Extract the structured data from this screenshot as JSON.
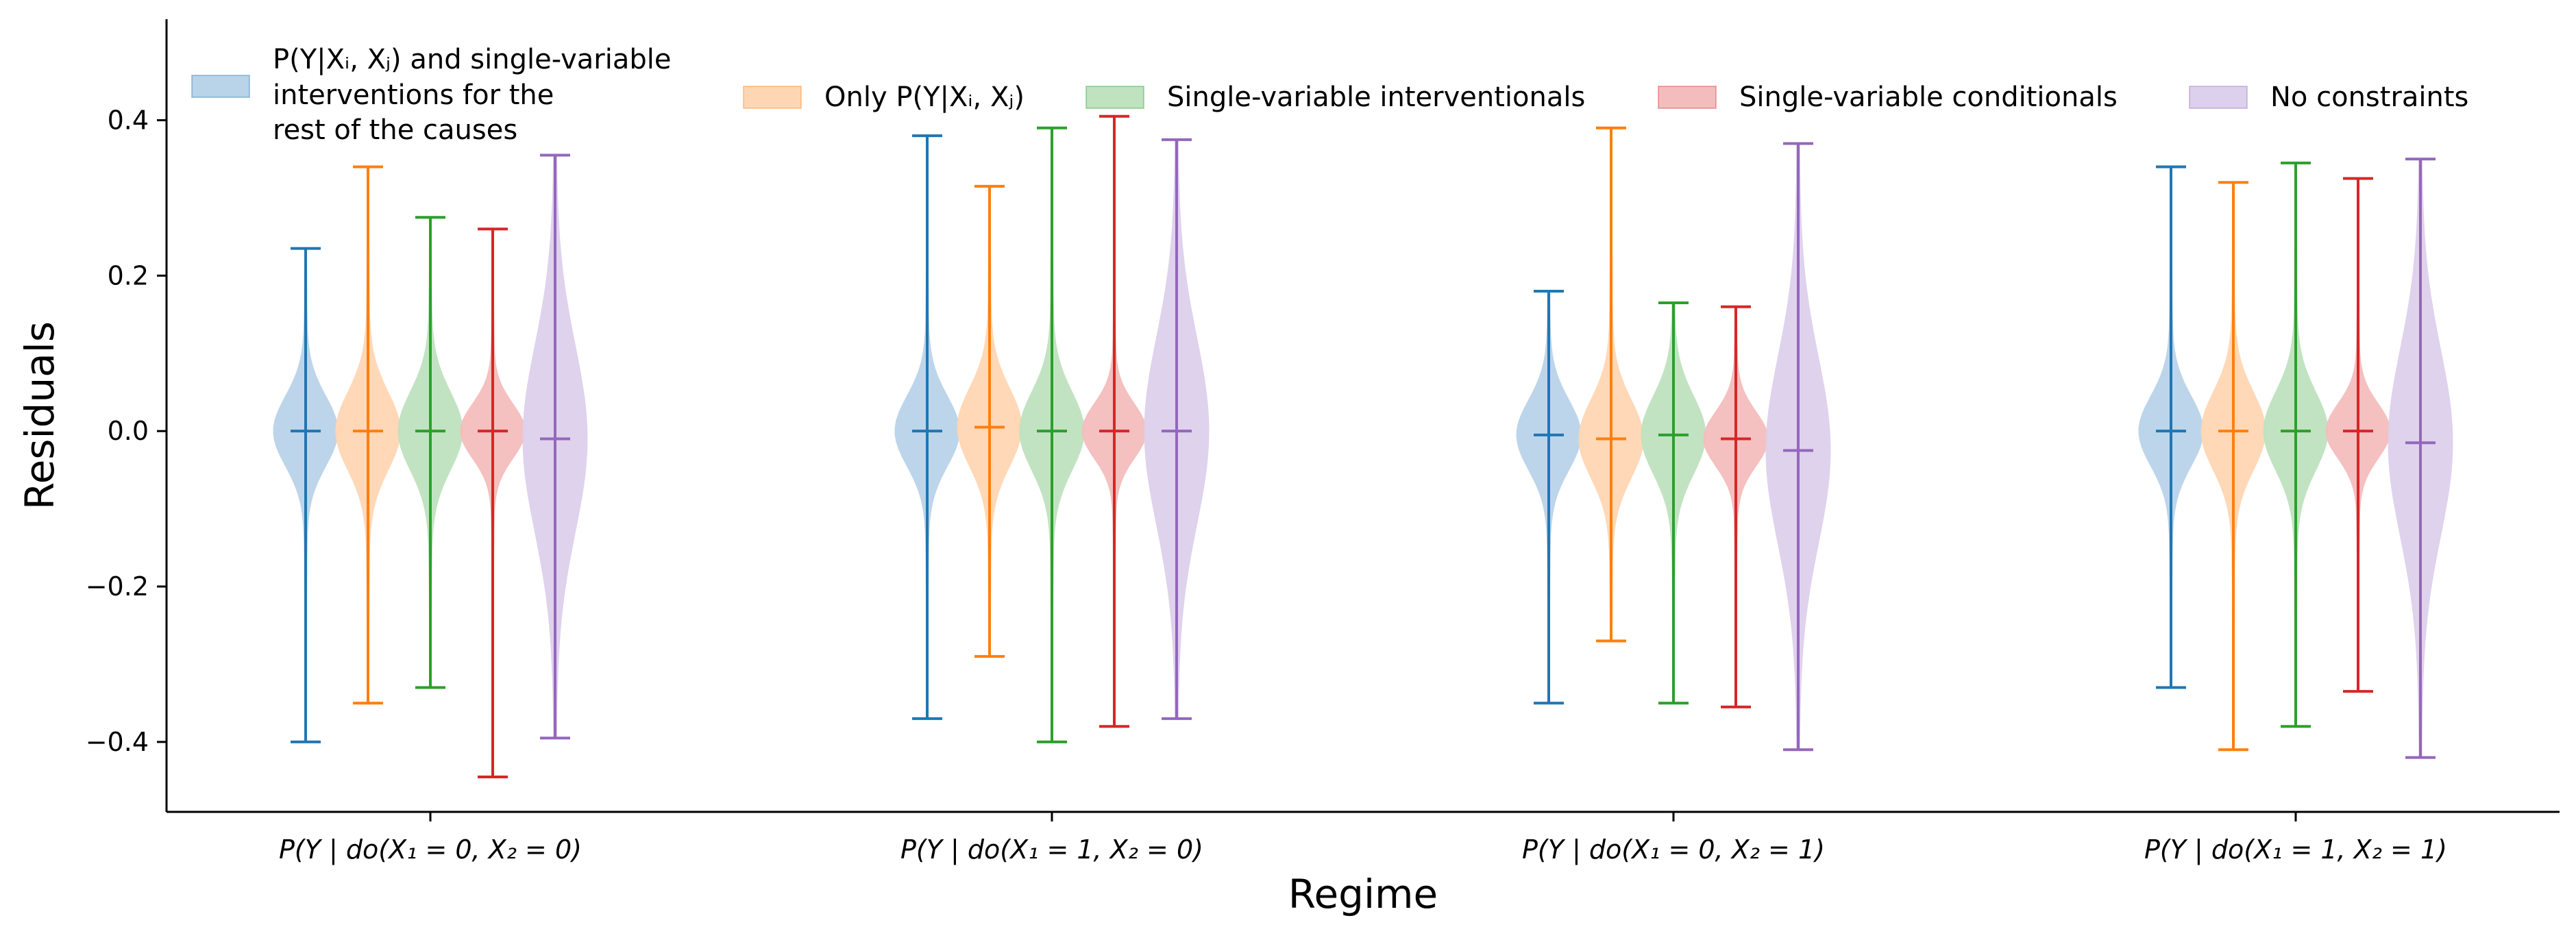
{
  "chart_data": {
    "type": "violin",
    "xlabel": "Regime",
    "ylabel": "Residuals",
    "ylim": [
      -0.49,
      0.53
    ],
    "yticks": [
      {
        "value": 0.4,
        "label": "0.4"
      },
      {
        "value": 0.2,
        "label": "0.2"
      },
      {
        "value": 0.0,
        "label": "0.0"
      },
      {
        "value": -0.2,
        "label": "−0.2"
      },
      {
        "value": -0.4,
        "label": "−0.4"
      }
    ],
    "categories": [
      "P(Y | do(X₁ = 0, X₂ = 0)",
      "P(Y | do(X₁ = 1, X₂ = 0)",
      "P(Y | do(X₁ = 0, X₂ = 1)",
      "P(Y | do(X₁ = 1, X₂ = 1)"
    ],
    "series": [
      {
        "name_lines": [
          "P(Y|Xᵢ, Xⱼ) and single-variable",
          " interventions for the",
          "rest of the causes"
        ],
        "color": "#1f77b4",
        "fill": "#b9d3e9",
        "violins": [
          {
            "min": -0.4,
            "max": 0.235,
            "median": 0.0,
            "spread": 0.045
          },
          {
            "min": -0.37,
            "max": 0.38,
            "median": 0.0,
            "spread": 0.045
          },
          {
            "min": -0.35,
            "max": 0.18,
            "median": -0.005,
            "spread": 0.045
          },
          {
            "min": -0.33,
            "max": 0.34,
            "median": 0.0,
            "spread": 0.045
          }
        ]
      },
      {
        "name_lines": [
          "Only P(Y|Xᵢ, Xⱼ)"
        ],
        "color": "#ff7f0e",
        "fill": "#ffd6b3",
        "violins": [
          {
            "min": -0.35,
            "max": 0.34,
            "median": 0.0,
            "spread": 0.05
          },
          {
            "min": -0.29,
            "max": 0.315,
            "median": 0.005,
            "spread": 0.05
          },
          {
            "min": -0.27,
            "max": 0.39,
            "median": -0.01,
            "spread": 0.05
          },
          {
            "min": -0.41,
            "max": 0.32,
            "median": 0.0,
            "spread": 0.05
          }
        ]
      },
      {
        "name_lines": [
          "Single-variable interventionals"
        ],
        "color": "#2ca02c",
        "fill": "#bfe2bf",
        "violins": [
          {
            "min": -0.33,
            "max": 0.275,
            "median": 0.0,
            "spread": 0.05
          },
          {
            "min": -0.4,
            "max": 0.39,
            "median": 0.0,
            "spread": 0.05
          },
          {
            "min": -0.35,
            "max": 0.165,
            "median": -0.005,
            "spread": 0.05
          },
          {
            "min": -0.38,
            "max": 0.345,
            "median": 0.0,
            "spread": 0.05
          }
        ]
      },
      {
        "name_lines": [
          "Single-variable conditionals"
        ],
        "color": "#d62728",
        "fill": "#f3bdbd",
        "violins": [
          {
            "min": -0.445,
            "max": 0.26,
            "median": 0.0,
            "spread": 0.035
          },
          {
            "min": -0.38,
            "max": 0.405,
            "median": 0.0,
            "spread": 0.035
          },
          {
            "min": -0.355,
            "max": 0.16,
            "median": -0.01,
            "spread": 0.035
          },
          {
            "min": -0.335,
            "max": 0.325,
            "median": 0.0,
            "spread": 0.035
          }
        ]
      },
      {
        "name_lines": [
          "No constraints"
        ],
        "color": "#9467bd",
        "fill": "#ddd0ec",
        "violins": [
          {
            "min": -0.395,
            "max": 0.355,
            "median": -0.01,
            "spread": 0.12
          },
          {
            "min": -0.37,
            "max": 0.375,
            "median": 0.0,
            "spread": 0.12
          },
          {
            "min": -0.41,
            "max": 0.37,
            "median": -0.025,
            "spread": 0.12
          },
          {
            "min": -0.42,
            "max": 0.35,
            "median": -0.015,
            "spread": 0.12
          }
        ]
      }
    ],
    "legend_position": "top"
  }
}
